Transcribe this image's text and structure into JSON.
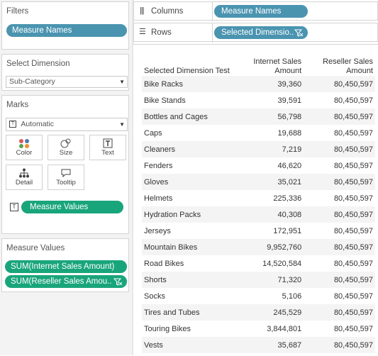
{
  "filters": {
    "title": "Filters",
    "pill": "Measure Names"
  },
  "select_dimension": {
    "title": "Select Dimension",
    "value": "Sub-Category"
  },
  "marks": {
    "title": "Marks",
    "mark_type": "Automatic",
    "buttons": {
      "color": "Color",
      "size": "Size",
      "text": "Text",
      "detail": "Detail",
      "tooltip": "Tooltip"
    },
    "text_pill": "Measure Values",
    "icons": {
      "color": "color-dots-icon",
      "size": "size-icon",
      "text": "text-icon",
      "detail": "detail-icon",
      "tooltip": "tooltip-icon"
    }
  },
  "measure_values": {
    "title": "Measure Values",
    "items": [
      "SUM(Internet Sales Amount)",
      "SUM(Reseller Sales Amou.."
    ]
  },
  "shelves": {
    "columns_label": "Columns",
    "columns_pill": "Measure Names",
    "rows_label": "Rows",
    "rows_pill": "Selected Dimensio.."
  },
  "table": {
    "header_dim": "Selected Dimension Test",
    "header_col1_line1": "Internet Sales",
    "header_col1_line2": "Amount",
    "header_col2_line1": "Reseller Sales",
    "header_col2_line2": "Amount",
    "rows": [
      [
        "Bike Racks",
        "39,360",
        "80,450,597"
      ],
      [
        "Bike Stands",
        "39,591",
        "80,450,597"
      ],
      [
        "Bottles and Cages",
        "56,798",
        "80,450,597"
      ],
      [
        "Caps",
        "19,688",
        "80,450,597"
      ],
      [
        "Cleaners",
        "7,219",
        "80,450,597"
      ],
      [
        "Fenders",
        "46,620",
        "80,450,597"
      ],
      [
        "Gloves",
        "35,021",
        "80,450,597"
      ],
      [
        "Helmets",
        "225,336",
        "80,450,597"
      ],
      [
        "Hydration Packs",
        "40,308",
        "80,450,597"
      ],
      [
        "Jerseys",
        "172,951",
        "80,450,597"
      ],
      [
        "Mountain Bikes",
        "9,952,760",
        "80,450,597"
      ],
      [
        "Road Bikes",
        "14,520,584",
        "80,450,597"
      ],
      [
        "Shorts",
        "71,320",
        "80,450,597"
      ],
      [
        "Socks",
        "5,106",
        "80,450,597"
      ],
      [
        "Tires and Tubes",
        "245,529",
        "80,450,597"
      ],
      [
        "Touring Bikes",
        "3,844,801",
        "80,450,597"
      ],
      [
        "Vests",
        "35,687",
        "80,450,597"
      ]
    ]
  }
}
